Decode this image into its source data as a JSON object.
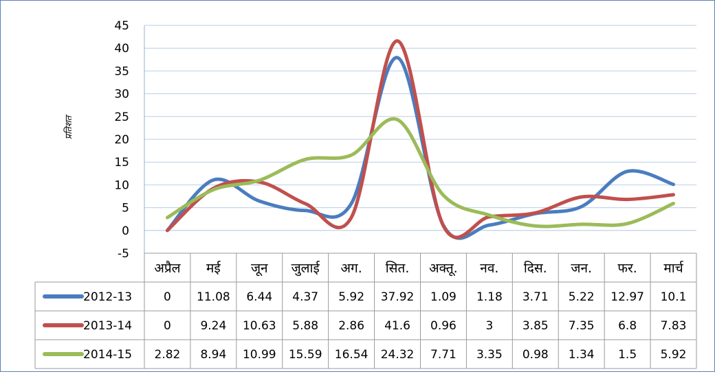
{
  "chart_data": {
    "type": "line",
    "ylabel": "प्रतिशत",
    "ylim": [
      -5,
      45
    ],
    "yticks": [
      -5,
      0,
      5,
      10,
      15,
      20,
      25,
      30,
      35,
      40,
      45
    ],
    "grid": true,
    "legend": "data-table-left",
    "categories": [
      "अप्रैल",
      "मई",
      "जून",
      "जुलाई",
      "अग.",
      "सित.",
      "अक्तू.",
      "नव.",
      "दिस.",
      "जन.",
      "फर.",
      "मार्च"
    ],
    "series": [
      {
        "name": "2012-13",
        "color": "#4a7dbf",
        "values": [
          0,
          11.08,
          6.44,
          4.37,
          5.92,
          37.92,
          1.09,
          1.18,
          3.71,
          5.22,
          12.97,
          10.1
        ],
        "labels": [
          "0",
          "11.08",
          "6.44",
          "4.37",
          "5.92",
          "37.92",
          "1.09",
          "1.18",
          "3.71",
          "5.22",
          "12.97",
          "10.1"
        ]
      },
      {
        "name": "2013-14",
        "color": "#c0504d",
        "values": [
          0,
          9.24,
          10.63,
          5.88,
          2.86,
          41.6,
          0.96,
          3,
          3.85,
          7.35,
          6.8,
          7.83
        ],
        "labels": [
          "0",
          "9.24",
          "10.63",
          "5.88",
          "2.86",
          "41.6",
          "0.96",
          "3",
          "3.85",
          "7.35",
          "6.8",
          "7.83"
        ]
      },
      {
        "name": "2014-15",
        "color": "#9bbb59",
        "values": [
          2.82,
          8.94,
          10.99,
          15.59,
          16.54,
          24.32,
          7.71,
          3.35,
          0.98,
          1.34,
          1.5,
          5.92
        ],
        "labels": [
          "2.82",
          "8.94",
          "10.99",
          "15.59",
          "16.54",
          "24.32",
          "7.71",
          "3.35",
          "0.98",
          "1.34",
          "1.5",
          "5.92"
        ]
      }
    ]
  }
}
